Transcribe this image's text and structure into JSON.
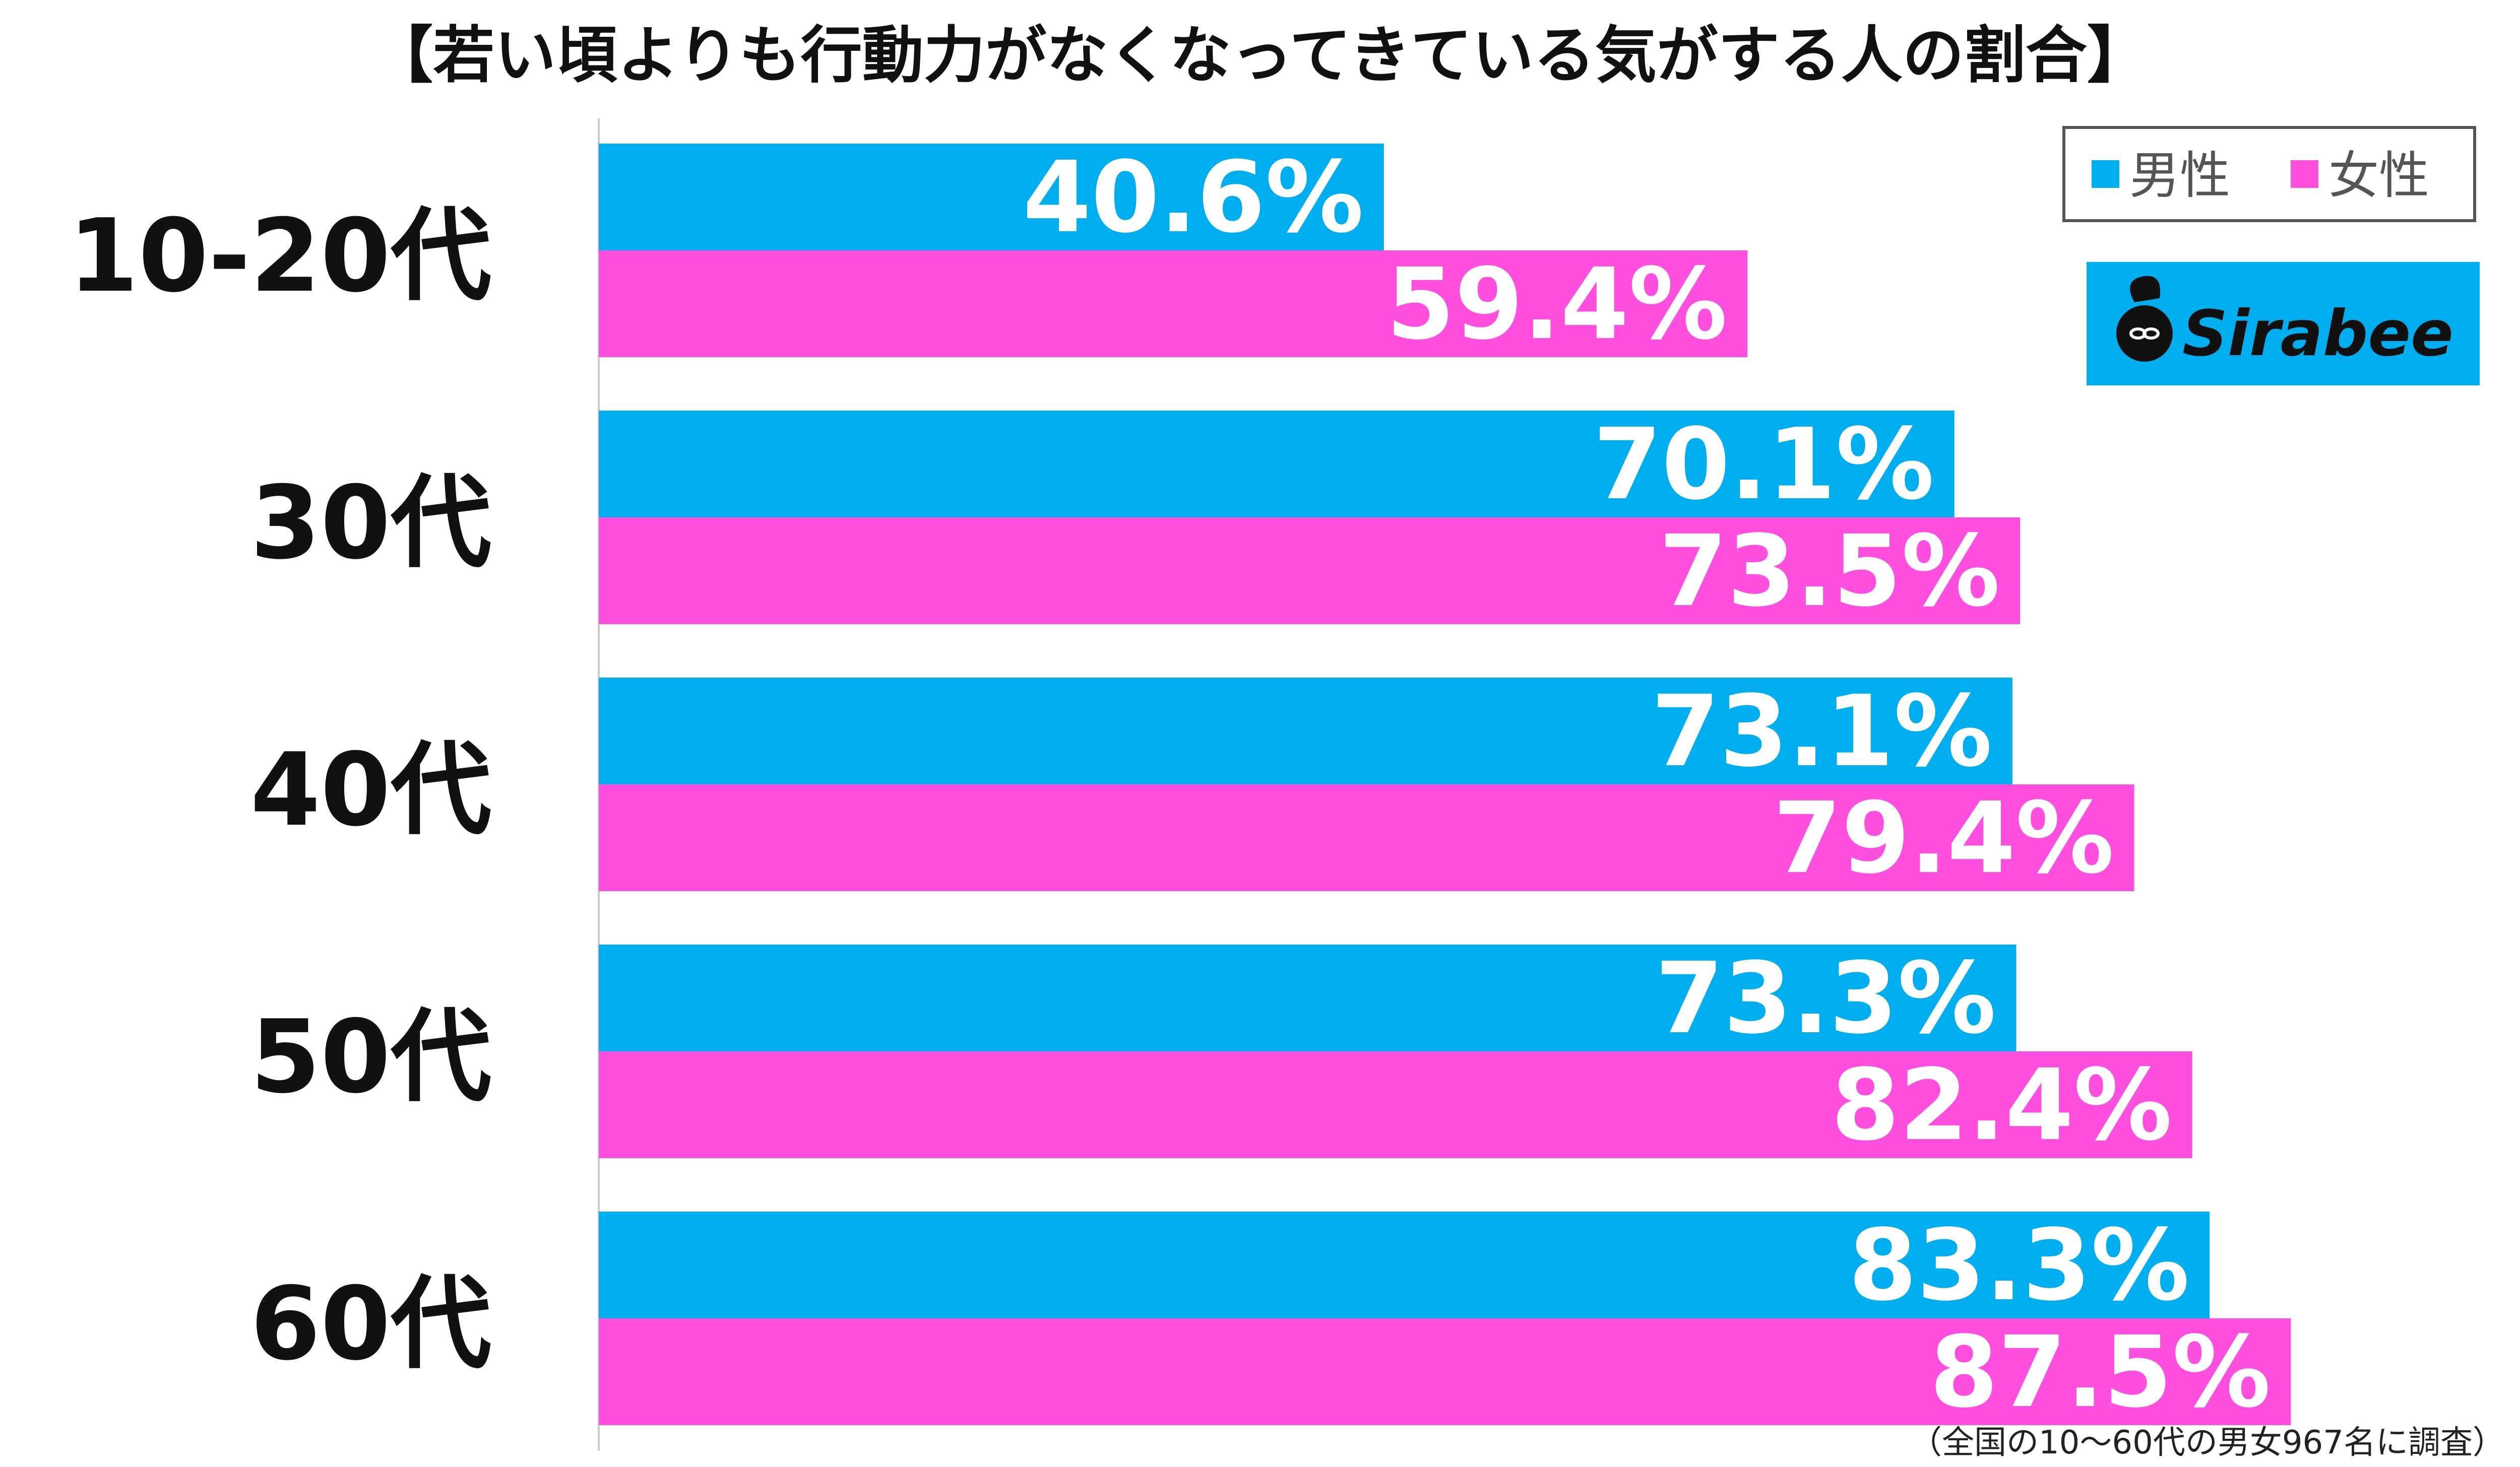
{
  "chart_data": {
    "type": "bar",
    "orientation": "horizontal",
    "title": "【若い頃よりも行動力がなくなってきている気がする人の割合】",
    "categories": [
      "10-20代",
      "30代",
      "40代",
      "50代",
      "60代"
    ],
    "series": [
      {
        "name": "男性",
        "color": "#00adef",
        "values": [
          40.6,
          70.1,
          73.1,
          73.3,
          83.3
        ]
      },
      {
        "name": "女性",
        "color": "#ff4fde",
        "values": [
          59.4,
          73.5,
          79.4,
          82.4,
          87.5
        ]
      }
    ],
    "value_suffix": "%",
    "xlim": [
      0,
      90
    ],
    "grid": false,
    "legend_position": "top-right",
    "note": "（全国の10～60代の男女967名に調査）"
  },
  "brand": {
    "name": "Sirabee",
    "color": "#00adef"
  }
}
